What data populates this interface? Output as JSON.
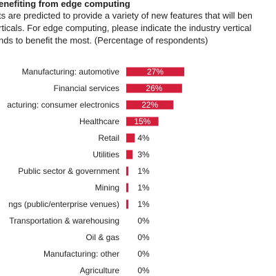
{
  "title": "enefiting from edge computing",
  "description_lines": [
    "ts are predicted to provide a variety of new features that will ben",
    "rticals. For edge computing, please indicate the industry vertical",
    "nds to benefit the most. (Percentage of respondents)"
  ],
  "colors": {
    "bar": "#d31f3c",
    "label_inside": "#ffffff",
    "label_outside": "#222222",
    "text": "#222222"
  },
  "chart_data": {
    "type": "bar",
    "orientation": "horizontal",
    "categories": [
      "Manufacturing: automotive",
      "Financial services",
      "acturing: consumer electronics",
      "Healthcare",
      "Retail",
      "Utilities",
      "Public sector & government",
      "Mining",
      "ngs (public/enterprise venues)",
      "Transportation & warehousing",
      "Oil & gas",
      "Manufacturing: other",
      "Agriculture"
    ],
    "values": [
      27,
      26,
      22,
      15,
      4,
      3,
      1,
      1,
      1,
      0,
      0,
      0,
      0
    ],
    "data_labels": [
      "27%",
      "26%",
      "22%",
      "15%",
      "4%",
      "3%",
      "1%",
      "1%",
      "1%",
      "0%",
      "0%",
      "0%",
      "0%"
    ],
    "xlim": [
      0,
      27
    ],
    "grid": false
  }
}
